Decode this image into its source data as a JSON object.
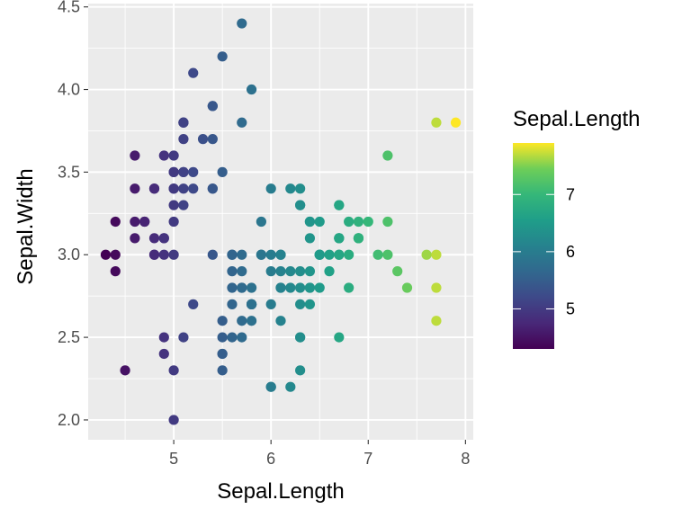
{
  "chart_data": {
    "type": "scatter",
    "xlabel": "Sepal.Length",
    "ylabel": "Sepal.Width",
    "xlim": [
      4.12,
      8.08
    ],
    "ylim": [
      1.88,
      4.52
    ],
    "x_ticks": [
      5,
      6,
      7,
      8
    ],
    "y_ticks": [
      2.0,
      2.5,
      3.0,
      3.5,
      4.0,
      4.5
    ],
    "x_tick_labels": [
      "5",
      "6",
      "7",
      "8"
    ],
    "y_tick_labels": [
      "2.0",
      "2.5",
      "3.0",
      "3.5",
      "4.0",
      "4.5"
    ],
    "grid": true,
    "panel_background": "#ebebeb",
    "color_by": "Sepal.Length",
    "color_scale": "viridis",
    "color_range": [
      4.3,
      7.9
    ],
    "legend": {
      "title": "Sepal.Length",
      "position": "right",
      "breaks": [
        5,
        6,
        7
      ],
      "break_labels": [
        "5",
        "6",
        "7"
      ]
    },
    "points": [
      [
        5.1,
        3.5
      ],
      [
        4.9,
        3.0
      ],
      [
        4.7,
        3.2
      ],
      [
        4.6,
        3.1
      ],
      [
        5.0,
        3.6
      ],
      [
        5.4,
        3.9
      ],
      [
        4.6,
        3.4
      ],
      [
        5.0,
        3.4
      ],
      [
        4.4,
        2.9
      ],
      [
        4.9,
        3.1
      ],
      [
        5.4,
        3.7
      ],
      [
        4.8,
        3.4
      ],
      [
        4.8,
        3.0
      ],
      [
        4.3,
        3.0
      ],
      [
        5.8,
        4.0
      ],
      [
        5.7,
        4.4
      ],
      [
        5.4,
        3.9
      ],
      [
        5.1,
        3.5
      ],
      [
        5.7,
        3.8
      ],
      [
        5.1,
        3.8
      ],
      [
        5.4,
        3.4
      ],
      [
        5.1,
        3.7
      ],
      [
        4.6,
        3.6
      ],
      [
        5.1,
        3.3
      ],
      [
        4.8,
        3.4
      ],
      [
        5.0,
        3.0
      ],
      [
        5.0,
        3.4
      ],
      [
        5.2,
        3.5
      ],
      [
        5.2,
        3.4
      ],
      [
        4.7,
        3.2
      ],
      [
        4.8,
        3.1
      ],
      [
        5.4,
        3.4
      ],
      [
        5.2,
        4.1
      ],
      [
        5.5,
        4.2
      ],
      [
        4.9,
        3.1
      ],
      [
        5.0,
        3.2
      ],
      [
        5.5,
        3.5
      ],
      [
        4.9,
        3.6
      ],
      [
        4.4,
        3.0
      ],
      [
        5.1,
        3.4
      ],
      [
        5.0,
        3.5
      ],
      [
        4.5,
        2.3
      ],
      [
        4.4,
        3.2
      ],
      [
        5.0,
        3.5
      ],
      [
        5.1,
        3.8
      ],
      [
        4.8,
        3.0
      ],
      [
        5.1,
        3.8
      ],
      [
        4.6,
        3.2
      ],
      [
        5.3,
        3.7
      ],
      [
        5.0,
        3.3
      ],
      [
        7.0,
        3.2
      ],
      [
        6.4,
        3.2
      ],
      [
        6.9,
        3.1
      ],
      [
        5.5,
        2.3
      ],
      [
        6.5,
        2.8
      ],
      [
        5.7,
        2.8
      ],
      [
        6.3,
        3.3
      ],
      [
        4.9,
        2.4
      ],
      [
        6.6,
        2.9
      ],
      [
        5.2,
        2.7
      ],
      [
        5.0,
        2.0
      ],
      [
        5.9,
        3.0
      ],
      [
        6.0,
        2.2
      ],
      [
        6.1,
        2.9
      ],
      [
        5.6,
        2.9
      ],
      [
        6.7,
        3.1
      ],
      [
        5.6,
        3.0
      ],
      [
        5.8,
        2.7
      ],
      [
        6.2,
        2.2
      ],
      [
        5.6,
        2.5
      ],
      [
        5.9,
        3.2
      ],
      [
        6.1,
        2.8
      ],
      [
        6.3,
        2.5
      ],
      [
        6.1,
        2.8
      ],
      [
        6.4,
        2.9
      ],
      [
        6.6,
        3.0
      ],
      [
        6.8,
        2.8
      ],
      [
        6.7,
        3.0
      ],
      [
        6.0,
        2.9
      ],
      [
        5.7,
        2.6
      ],
      [
        5.5,
        2.4
      ],
      [
        5.5,
        2.4
      ],
      [
        5.8,
        2.7
      ],
      [
        6.0,
        2.7
      ],
      [
        5.4,
        3.0
      ],
      [
        6.0,
        3.4
      ],
      [
        6.7,
        3.1
      ],
      [
        6.3,
        2.3
      ],
      [
        5.6,
        3.0
      ],
      [
        5.5,
        2.5
      ],
      [
        5.5,
        2.6
      ],
      [
        6.1,
        3.0
      ],
      [
        5.8,
        2.6
      ],
      [
        5.0,
        2.3
      ],
      [
        5.6,
        2.7
      ],
      [
        5.7,
        3.0
      ],
      [
        5.7,
        2.9
      ],
      [
        6.2,
        2.9
      ],
      [
        5.1,
        2.5
      ],
      [
        5.7,
        2.8
      ],
      [
        6.3,
        3.3
      ],
      [
        5.8,
        2.7
      ],
      [
        7.1,
        3.0
      ],
      [
        6.3,
        2.9
      ],
      [
        6.5,
        3.0
      ],
      [
        7.6,
        3.0
      ],
      [
        4.9,
        2.5
      ],
      [
        7.3,
        2.9
      ],
      [
        6.7,
        2.5
      ],
      [
        7.2,
        3.6
      ],
      [
        6.5,
        3.2
      ],
      [
        6.4,
        2.7
      ],
      [
        6.8,
        3.0
      ],
      [
        5.7,
        2.5
      ],
      [
        5.8,
        2.8
      ],
      [
        6.4,
        3.2
      ],
      [
        6.5,
        3.0
      ],
      [
        7.7,
        3.8
      ],
      [
        7.7,
        2.6
      ],
      [
        6.0,
        2.2
      ],
      [
        6.9,
        3.2
      ],
      [
        5.6,
        2.8
      ],
      [
        7.7,
        2.8
      ],
      [
        6.3,
        2.7
      ],
      [
        6.7,
        3.3
      ],
      [
        7.2,
        3.2
      ],
      [
        6.2,
        2.8
      ],
      [
        6.1,
        3.0
      ],
      [
        6.4,
        2.8
      ],
      [
        7.2,
        3.0
      ],
      [
        7.4,
        2.8
      ],
      [
        7.9,
        3.8
      ],
      [
        6.4,
        2.8
      ],
      [
        6.3,
        2.8
      ],
      [
        6.1,
        2.6
      ],
      [
        7.7,
        3.0
      ],
      [
        6.3,
        3.4
      ],
      [
        6.4,
        3.1
      ],
      [
        6.0,
        3.0
      ],
      [
        6.9,
        3.1
      ],
      [
        6.7,
        3.1
      ],
      [
        6.9,
        3.1
      ],
      [
        5.8,
        2.7
      ],
      [
        6.8,
        3.2
      ],
      [
        6.7,
        3.3
      ],
      [
        6.7,
        3.0
      ],
      [
        6.3,
        2.5
      ],
      [
        6.5,
        3.0
      ],
      [
        6.2,
        3.4
      ],
      [
        5.9,
        3.0
      ]
    ]
  }
}
